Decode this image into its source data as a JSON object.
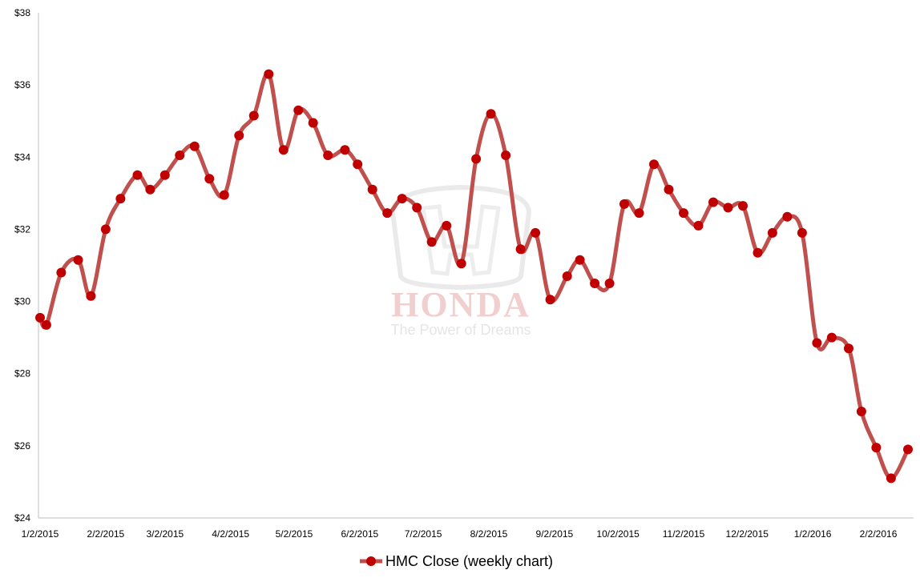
{
  "chart_data": {
    "type": "line",
    "series": [
      {
        "name": "HMC Close (weekly chart)",
        "color": "#c0504d",
        "marker_color": "#c00000",
        "x": [
          "2015-01-02",
          "2015-01-05",
          "2015-01-12",
          "2015-01-20",
          "2015-01-26",
          "2015-02-02",
          "2015-02-09",
          "2015-02-17",
          "2015-02-23",
          "2015-03-02",
          "2015-03-09",
          "2015-03-16",
          "2015-03-23",
          "2015-03-30",
          "2015-04-06",
          "2015-04-13",
          "2015-04-20",
          "2015-04-27",
          "2015-05-04",
          "2015-05-11",
          "2015-05-18",
          "2015-05-26",
          "2015-06-01",
          "2015-06-08",
          "2015-06-15",
          "2015-06-22",
          "2015-06-29",
          "2015-07-06",
          "2015-07-13",
          "2015-07-20",
          "2015-07-27",
          "2015-08-03",
          "2015-08-10",
          "2015-08-17",
          "2015-08-24",
          "2015-08-31",
          "2015-09-08",
          "2015-09-14",
          "2015-09-21",
          "2015-09-28",
          "2015-10-05",
          "2015-10-12",
          "2015-10-19",
          "2015-10-26",
          "2015-11-02",
          "2015-11-09",
          "2015-11-16",
          "2015-11-23",
          "2015-11-30",
          "2015-12-07",
          "2015-12-14",
          "2015-12-21",
          "2015-12-28",
          "2016-01-04",
          "2016-01-11",
          "2016-01-19",
          "2016-01-25",
          "2016-02-01",
          "2016-02-08",
          "2016-02-16"
        ],
        "values": [
          29.55,
          29.35,
          30.8,
          31.15,
          30.15,
          32.0,
          32.85,
          33.5,
          33.1,
          33.5,
          34.05,
          34.3,
          33.4,
          32.95,
          34.6,
          35.15,
          36.3,
          34.2,
          35.3,
          34.95,
          34.05,
          34.2,
          33.8,
          33.1,
          32.45,
          32.85,
          32.6,
          31.65,
          32.1,
          31.05,
          33.95,
          35.2,
          34.05,
          31.45,
          31.9,
          30.05,
          30.7,
          31.15,
          30.5,
          30.5,
          32.7,
          32.45,
          33.8,
          33.1,
          32.45,
          32.1,
          32.75,
          32.6,
          32.65,
          31.35,
          31.9,
          32.35,
          31.9,
          28.85,
          29.0,
          28.7,
          26.95,
          25.95,
          25.1,
          25.9
        ]
      }
    ],
    "x_ticks": [
      "1/2/2015",
      "2/2/2015",
      "3/2/2015",
      "4/2/2015",
      "5/2/2015",
      "6/2/2015",
      "7/2/2015",
      "8/2/2015",
      "9/2/2015",
      "10/2/2015",
      "11/2/2015",
      "12/2/2015",
      "1/2/2016",
      "2/2/2016"
    ],
    "x_range": [
      "2015-01-02",
      "2016-02-16"
    ],
    "y_ticks": [
      "$24",
      "$26",
      "$28",
      "$30",
      "$32",
      "$34",
      "$36",
      "$38"
    ],
    "ylim": [
      24,
      38
    ],
    "grid": false,
    "legend_position": "bottom-center",
    "title": "",
    "xlabel": "",
    "ylabel": ""
  },
  "watermark": {
    "brand": "HONDA",
    "tagline": "The Power of Dreams",
    "color": "#e8a8a8"
  },
  "legend": {
    "label": "HMC Close (weekly chart)"
  }
}
